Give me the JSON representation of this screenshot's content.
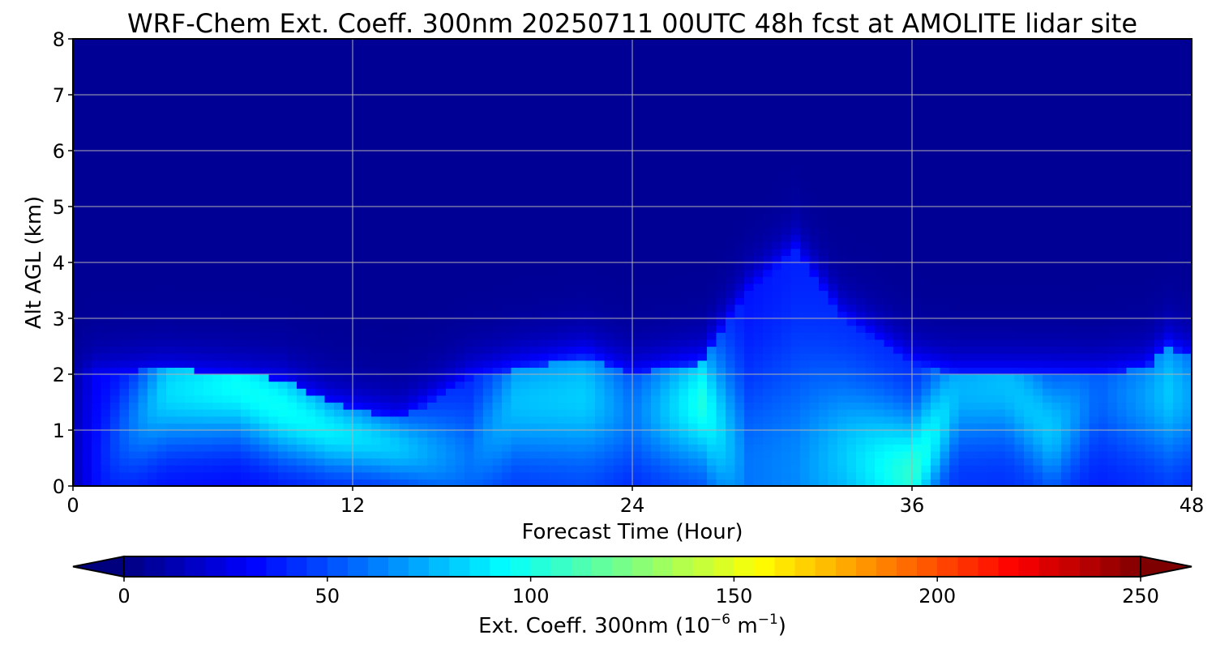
{
  "chart_data": {
    "type": "heatmap",
    "title": "WRF-Chem Ext. Coeff. 300nm  20250711 00UTC 48h fcst at AMOLITE lidar site",
    "xlabel": "Forecast Time (Hour)",
    "ylabel": "Alt AGL (km)",
    "xlim": [
      0,
      48
    ],
    "ylim": [
      0,
      8
    ],
    "x_ticks": [
      "0",
      "12",
      "24",
      "36",
      "48"
    ],
    "y_ticks": [
      "0",
      "1",
      "2",
      "3",
      "4",
      "5",
      "6",
      "7",
      "8"
    ],
    "grid": true,
    "colormap": "jet",
    "colorbar": {
      "orientation": "horizontal",
      "placement": "bottom",
      "range": [
        0,
        250
      ],
      "extend": "both",
      "ticks": [
        "0",
        "50",
        "100",
        "150",
        "200",
        "250"
      ],
      "label_main": "Ext. Coeff. 300nm  (10",
      "label_exp1": "−6",
      "label_mid": " m",
      "label_exp2": "−1",
      "label_end": ")"
    },
    "hours": [
      0,
      1,
      2,
      3,
      4,
      5,
      6,
      7,
      8,
      9,
      10,
      11,
      12,
      13,
      14,
      15,
      16,
      17,
      18,
      19,
      20,
      21,
      22,
      23,
      24,
      25,
      26,
      27,
      28,
      29,
      30,
      31,
      32,
      33,
      34,
      35,
      36,
      37,
      38,
      39,
      40,
      41,
      42,
      43,
      44,
      45,
      46,
      47,
      48
    ],
    "altitudes_km": [
      0,
      0.25,
      0.5,
      0.75,
      1,
      1.25,
      1.5,
      1.75,
      2,
      2.25,
      2.5,
      3,
      3.5,
      4,
      4.5,
      5,
      6,
      7,
      8
    ],
    "profile_features": [
      {
        "hour": 0,
        "top_km": 2.0,
        "peak_km": 0.5,
        "peak_value": 15,
        "base_value": 10
      },
      {
        "hour": 1,
        "top_km": 2.0,
        "peak_km": 0.5,
        "peak_value": 35,
        "base_value": 30
      },
      {
        "hour": 4,
        "top_km": 2.1,
        "peak_km": 1.7,
        "peak_value": 85,
        "base_value": 32
      },
      {
        "hour": 7,
        "top_km": 2.0,
        "peak_km": 1.8,
        "peak_value": 95,
        "base_value": 32
      },
      {
        "hour": 9,
        "top_km": 1.9,
        "peak_km": 1.4,
        "peak_value": 95,
        "base_value": 32
      },
      {
        "hour": 11,
        "top_km": 1.5,
        "peak_km": 1.0,
        "peak_value": 90,
        "base_value": 35
      },
      {
        "hour": 14,
        "top_km": 1.2,
        "peak_km": 0.7,
        "peak_value": 80,
        "base_value": 38
      },
      {
        "hour": 17,
        "top_km": 1.9,
        "peak_km": 0.5,
        "peak_value": 60,
        "base_value": 40
      },
      {
        "hour": 19,
        "top_km": 2.1,
        "peak_km": 1.5,
        "peak_value": 78,
        "base_value": 42
      },
      {
        "hour": 22,
        "top_km": 2.3,
        "peak_km": 1.6,
        "peak_value": 82,
        "base_value": 44
      },
      {
        "hour": 24,
        "top_km": 2.0,
        "peak_km": 1.3,
        "peak_value": 60,
        "base_value": 38
      },
      {
        "hour": 27,
        "top_km": 2.2,
        "peak_km": 1.5,
        "peak_value": 100,
        "base_value": 45
      },
      {
        "hour": 29,
        "top_km": 3.5,
        "peak_km": 0.3,
        "peak_value": 60,
        "base_value": 35
      },
      {
        "hour": 31,
        "top_km": 4.2,
        "peak_km": 0.3,
        "peak_value": 65,
        "base_value": 38
      },
      {
        "hour": 33,
        "top_km": 3.0,
        "peak_km": 0.5,
        "peak_value": 80,
        "base_value": 40
      },
      {
        "hour": 36,
        "top_km": 2.2,
        "peak_km": 0.2,
        "peak_value": 105,
        "base_value": 40
      },
      {
        "hour": 38,
        "top_km": 2.0,
        "peak_km": 1.7,
        "peak_value": 75,
        "base_value": 42
      },
      {
        "hour": 40,
        "top_km": 2.0,
        "peak_km": 1.8,
        "peak_value": 78,
        "base_value": 42
      },
      {
        "hour": 42,
        "top_km": 2.0,
        "peak_km": 1.0,
        "peak_value": 80,
        "base_value": 40
      },
      {
        "hour": 44,
        "top_km": 2.0,
        "peak_km": 1.6,
        "peak_value": 55,
        "base_value": 38
      },
      {
        "hour": 46,
        "top_km": 2.1,
        "peak_km": 1.6,
        "peak_value": 70,
        "base_value": 40
      },
      {
        "hour": 47,
        "top_km": 2.5,
        "peak_km": 1.7,
        "peak_value": 80,
        "base_value": 40
      },
      {
        "hour": 48,
        "top_km": 2.3,
        "peak_km": 1.6,
        "peak_value": 70,
        "base_value": 38
      }
    ],
    "background_value": 5
  }
}
